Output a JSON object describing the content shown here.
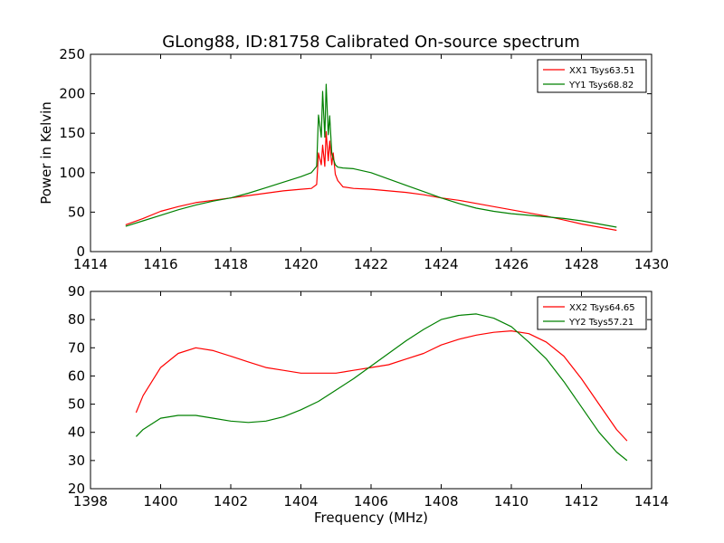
{
  "chart_data": [
    {
      "type": "line",
      "title": "GLong88, ID:81758 Calibrated On-source spectrum",
      "xlabel": "",
      "ylabel": "Power in Kelvin",
      "xlim": [
        1414,
        1430
      ],
      "ylim": [
        0,
        250
      ],
      "xticks": [
        1414,
        1416,
        1418,
        1420,
        1422,
        1424,
        1426,
        1428,
        1430
      ],
      "yticks": [
        0,
        50,
        100,
        150,
        200,
        250
      ],
      "grid": false,
      "legend_position": "top-right",
      "series": [
        {
          "name": "XX1 Tsys63.51",
          "color": "#ff0000",
          "x": [
            1415.0,
            1415.5,
            1416.0,
            1416.5,
            1417.0,
            1417.5,
            1418.0,
            1418.5,
            1419.0,
            1419.5,
            1420.0,
            1420.3,
            1420.45,
            1420.5,
            1420.58,
            1420.62,
            1420.68,
            1420.72,
            1420.78,
            1420.82,
            1420.88,
            1420.92,
            1420.98,
            1421.05,
            1421.2,
            1421.5,
            1422.0,
            1422.5,
            1423.0,
            1423.5,
            1424.0,
            1424.5,
            1425.0,
            1425.5,
            1426.0,
            1426.5,
            1427.0,
            1427.5,
            1428.0,
            1428.5,
            1429.0
          ],
          "y": [
            34,
            42,
            51,
            57,
            62,
            65,
            68,
            71,
            74,
            77,
            79,
            80,
            85,
            125,
            110,
            135,
            108,
            152,
            115,
            140,
            110,
            125,
            98,
            90,
            82,
            80,
            79,
            77,
            75,
            72,
            68,
            65,
            61,
            57,
            53,
            49,
            45,
            40,
            35,
            31,
            27
          ]
        },
        {
          "name": "YY1 Tsys68.82",
          "color": "#008000",
          "x": [
            1415.0,
            1415.5,
            1416.0,
            1416.5,
            1417.0,
            1417.5,
            1418.0,
            1418.5,
            1419.0,
            1419.5,
            1420.0,
            1420.3,
            1420.45,
            1420.5,
            1420.58,
            1420.62,
            1420.68,
            1420.72,
            1420.78,
            1420.82,
            1420.88,
            1420.92,
            1420.98,
            1421.05,
            1421.2,
            1421.5,
            1422.0,
            1422.5,
            1423.0,
            1423.5,
            1424.0,
            1424.5,
            1425.0,
            1425.5,
            1426.0,
            1426.5,
            1427.0,
            1427.5,
            1428.0,
            1428.5,
            1429.0
          ],
          "y": [
            32,
            39,
            46,
            53,
            59,
            64,
            68,
            74,
            81,
            88,
            95,
            100,
            108,
            173,
            145,
            203,
            145,
            212,
            148,
            172,
            125,
            118,
            110,
            107,
            106,
            105,
            100,
            92,
            84,
            76,
            68,
            61,
            55,
            51,
            48,
            46,
            44,
            42,
            39,
            35,
            31
          ]
        }
      ]
    },
    {
      "type": "line",
      "title": "",
      "xlabel": "Frequency (MHz)",
      "ylabel": "",
      "xlim": [
        1398,
        1414
      ],
      "ylim": [
        20,
        90
      ],
      "xticks": [
        1398,
        1400,
        1402,
        1404,
        1406,
        1408,
        1410,
        1412,
        1414
      ],
      "yticks": [
        20,
        30,
        40,
        50,
        60,
        70,
        80,
        90
      ],
      "grid": false,
      "legend_position": "top-right",
      "series": [
        {
          "name": "XX2 Tsys64.65",
          "color": "#ff0000",
          "x": [
            1399.3,
            1399.5,
            1400.0,
            1400.5,
            1401.0,
            1401.5,
            1402.0,
            1402.5,
            1403.0,
            1403.5,
            1404.0,
            1404.5,
            1405.0,
            1405.5,
            1406.0,
            1406.5,
            1407.0,
            1407.5,
            1408.0,
            1408.5,
            1409.0,
            1409.5,
            1410.0,
            1410.5,
            1411.0,
            1411.5,
            1412.0,
            1412.5,
            1413.0,
            1413.3
          ],
          "y": [
            47,
            53,
            63,
            68,
            70,
            69,
            67,
            65,
            63,
            62,
            61,
            61,
            61,
            62,
            63,
            64,
            66,
            68,
            71,
            73,
            74.5,
            75.5,
            76,
            75,
            72,
            67,
            59,
            50,
            41,
            37
          ]
        },
        {
          "name": "YY2 Tsys57.21",
          "color": "#008000",
          "x": [
            1399.3,
            1399.5,
            1400.0,
            1400.5,
            1401.0,
            1401.5,
            1402.0,
            1402.5,
            1403.0,
            1403.5,
            1404.0,
            1404.5,
            1405.0,
            1405.5,
            1406.0,
            1406.5,
            1407.0,
            1407.5,
            1408.0,
            1408.5,
            1409.0,
            1409.5,
            1410.0,
            1410.5,
            1411.0,
            1411.5,
            1412.0,
            1412.5,
            1413.0,
            1413.3
          ],
          "y": [
            38.5,
            41,
            45,
            46,
            46,
            45,
            44,
            43.5,
            44,
            45.5,
            48,
            51,
            55,
            59,
            63.5,
            68,
            72.5,
            76.5,
            80,
            81.5,
            82,
            80.5,
            77.5,
            72,
            66,
            58,
            49,
            40,
            33,
            30
          ]
        }
      ]
    }
  ]
}
